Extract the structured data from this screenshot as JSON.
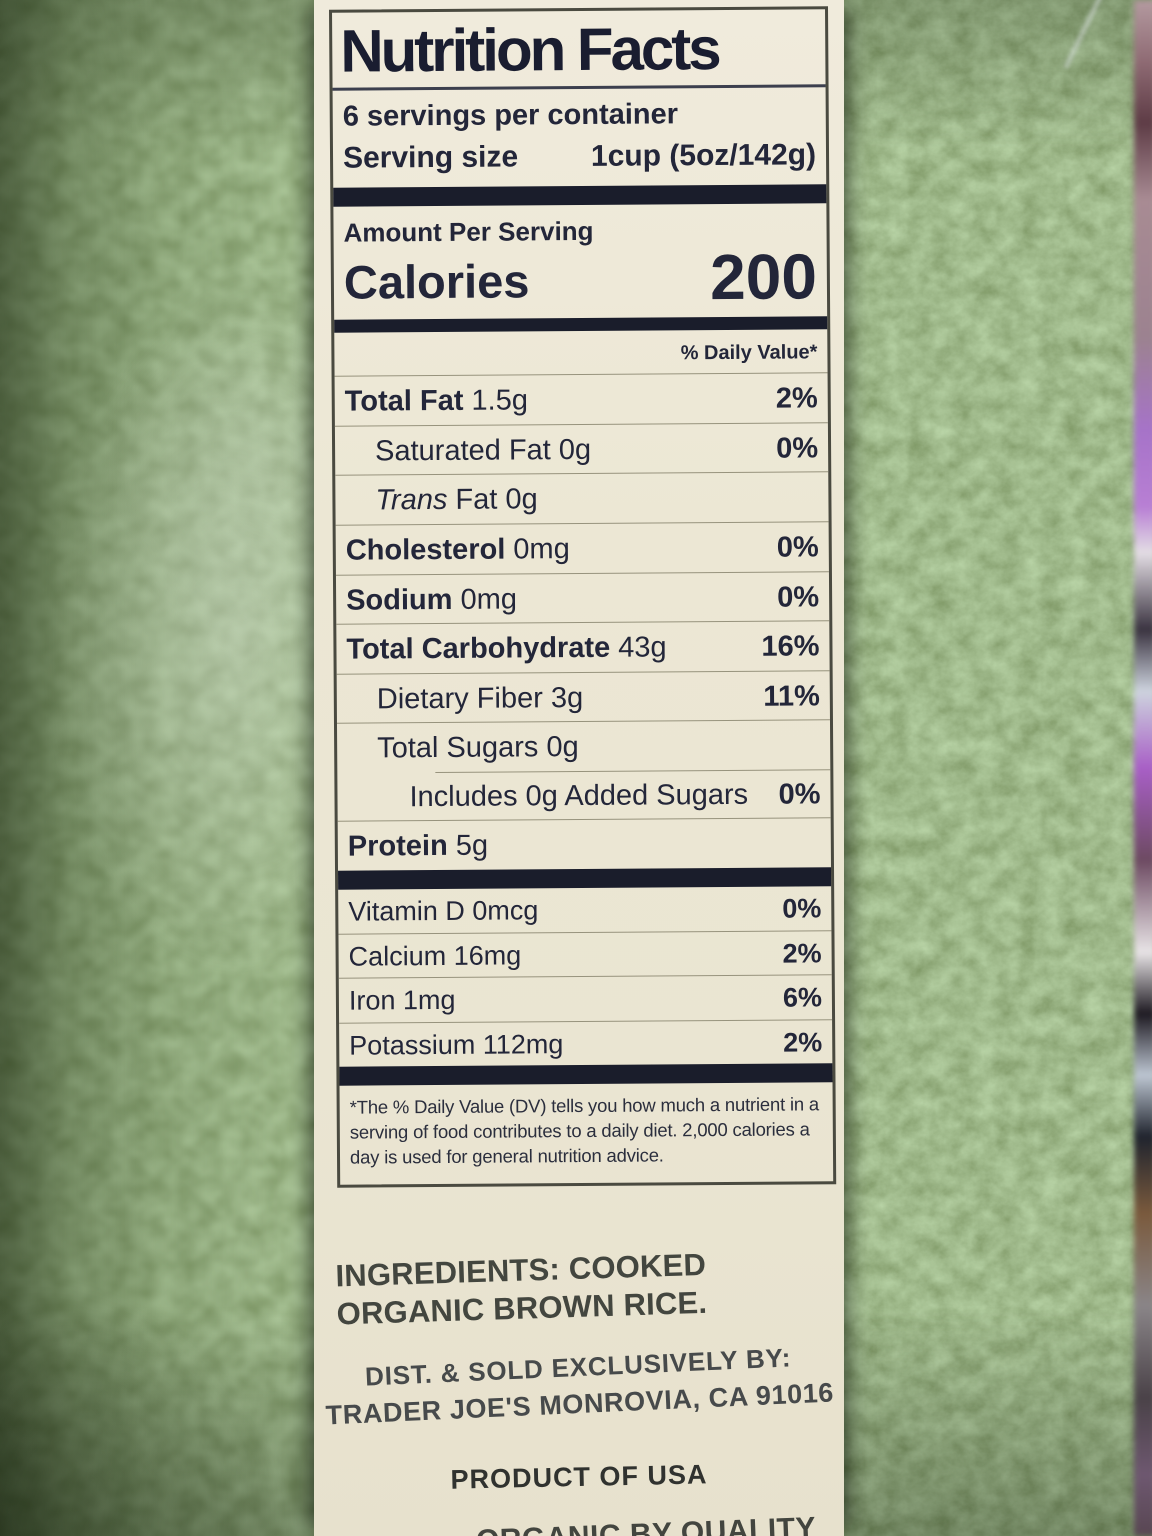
{
  "colors": {
    "label_background": "#ece7d4",
    "ink": "#232639",
    "green_package": "#5b7444",
    "thin_rule": "#97937d",
    "heavy_bar": "#1a1d2b"
  },
  "nutrition": {
    "title": "Nutrition Facts",
    "servings_per_container": "6 servings per container",
    "serving_size_label": "Serving size",
    "serving_size_value": "1cup (5oz/142g)",
    "amount_per_serving": "Amount Per Serving",
    "calories_label": "Calories",
    "calories_value": "200",
    "daily_value_header": "% Daily Value*",
    "rows": [
      {
        "name": "Total Fat",
        "amount": "1.5g",
        "dv": "2%",
        "bold": true,
        "indent": 0
      },
      {
        "name": "Saturated Fat",
        "amount": "0g",
        "dv": "0%",
        "bold": false,
        "indent": 1
      },
      {
        "name": "Trans Fat",
        "amount": "0g",
        "dv": "",
        "bold": false,
        "indent": 1,
        "italic_first_word": true
      },
      {
        "name": "Cholesterol",
        "amount": "0mg",
        "dv": "0%",
        "bold": true,
        "indent": 0
      },
      {
        "name": "Sodium",
        "amount": "0mg",
        "dv": "0%",
        "bold": true,
        "indent": 0
      },
      {
        "name": "Total Carbohydrate",
        "amount": "43g",
        "dv": "16%",
        "bold": true,
        "indent": 0
      },
      {
        "name": "Dietary Fiber",
        "amount": "3g",
        "dv": "11%",
        "bold": false,
        "indent": 1
      },
      {
        "name": "Total Sugars",
        "amount": "0g",
        "dv": "",
        "bold": false,
        "indent": 1
      },
      {
        "name": "Includes 0g Added Sugars",
        "amount": "",
        "dv": "0%",
        "bold": false,
        "indent": 2,
        "rule_indent": true
      },
      {
        "name": "Protein",
        "amount": "5g",
        "dv": "",
        "bold": true,
        "indent": 0
      }
    ],
    "vitamins": [
      {
        "name": "Vitamin D",
        "amount": "0mcg",
        "dv": "0%"
      },
      {
        "name": "Calcium",
        "amount": "16mg",
        "dv": "2%"
      },
      {
        "name": "Iron",
        "amount": "1mg",
        "dv": "6%"
      },
      {
        "name": "Potassium",
        "amount": "112mg",
        "dv": "2%"
      }
    ],
    "footnote": "*The % Daily Value (DV) tells you how much a nutrient in a serving of food contributes to a daily diet. 2,000 calories a day is used for general nutrition advice."
  },
  "package": {
    "ingredients_label": "INGREDIENTS:",
    "ingredients_text": " COOKED ORGANIC BROWN RICE.",
    "distributor_line1": "DIST. & SOLD EXCLUSIVELY BY:",
    "distributor_line2": "TRADER JOE'S MONROVIA, CA 91016",
    "product_origin": "PRODUCT OF USA",
    "bottom_partial_text": "ORGANIC BY QUALITY"
  }
}
